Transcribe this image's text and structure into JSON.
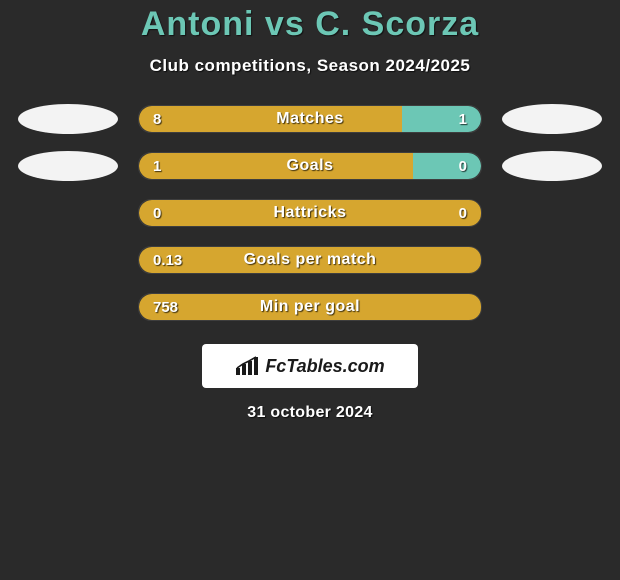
{
  "title": {
    "player1": "Antoni",
    "vs": "vs",
    "player2": "C. Scorza"
  },
  "subtitle": "Club competitions, Season 2024/2025",
  "colors": {
    "left_bar": "#d6a62f",
    "right_bar": "#6cc7b5",
    "title": "#6cc7b5",
    "background": "#2a2a2a",
    "text": "#ffffff",
    "bubble": "#f3f3f3"
  },
  "rows": [
    {
      "label": "Matches",
      "left_val": "8",
      "right_val": "1",
      "left_pct": 77,
      "right_pct": 23,
      "show_left_bubble": true,
      "show_right_bubble": true
    },
    {
      "label": "Goals",
      "left_val": "1",
      "right_val": "0",
      "left_pct": 80,
      "right_pct": 20,
      "show_left_bubble": true,
      "show_right_bubble": true
    },
    {
      "label": "Hattricks",
      "left_val": "0",
      "right_val": "0",
      "left_pct": 100,
      "right_pct": 0,
      "show_left_bubble": false,
      "show_right_bubble": false
    },
    {
      "label": "Goals per match",
      "left_val": "0.13",
      "right_val": "",
      "left_pct": 100,
      "right_pct": 0,
      "show_left_bubble": false,
      "show_right_bubble": false
    },
    {
      "label": "Min per goal",
      "left_val": "758",
      "right_val": "",
      "left_pct": 100,
      "right_pct": 0,
      "show_left_bubble": false,
      "show_right_bubble": false
    }
  ],
  "brand": {
    "name": "FcTables.com"
  },
  "date": "31 october 2024"
}
